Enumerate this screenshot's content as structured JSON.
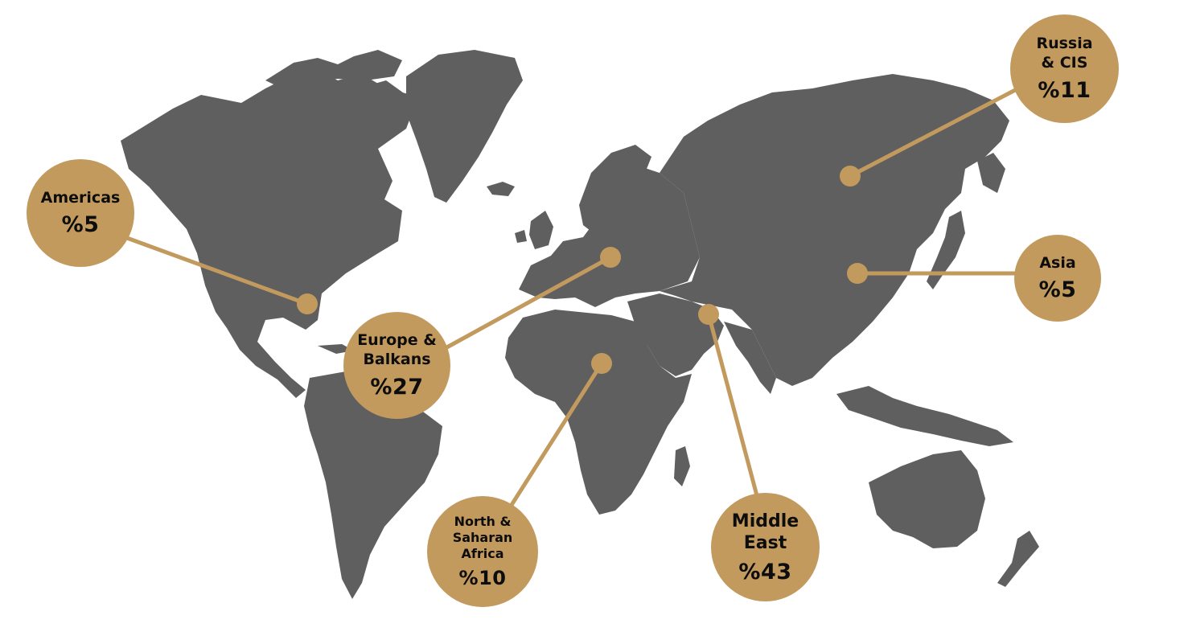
{
  "colors": {
    "land": "#5f5f5f",
    "accent": "#c39a5e",
    "background": "#ffffff",
    "text": "#0d0d0d"
  },
  "regions": [
    {
      "id": "americas",
      "label": "Americas",
      "percent": "%5",
      "share": 5
    },
    {
      "id": "europe-balkans",
      "label": "Europe &\nBalkans",
      "percent": "%27",
      "share": 27
    },
    {
      "id": "north-saharan-africa",
      "label": "North &\nSaharan\nAfrica",
      "percent": "%10",
      "share": 10
    },
    {
      "id": "middle-east",
      "label": "Middle\nEast",
      "percent": "%43",
      "share": 43
    },
    {
      "id": "russia-cis",
      "label": "Russia\n& CIS",
      "percent": "%11",
      "share": 11
    },
    {
      "id": "asia",
      "label": "Asia",
      "percent": "%5",
      "share": 5
    }
  ]
}
